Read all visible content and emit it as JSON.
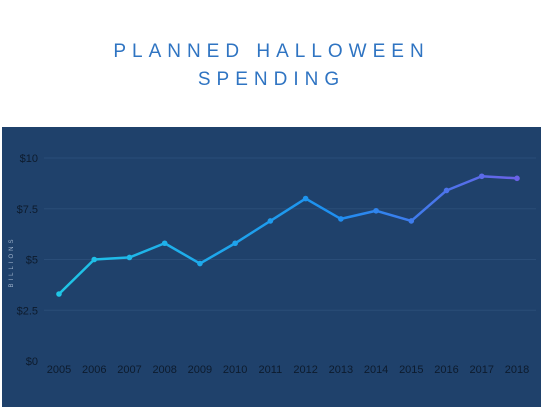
{
  "title_line1": "PLANNED HALLOWEEN",
  "title_line2": "SPENDING",
  "colors": {
    "background": "#ffffff",
    "panel": "#1f416b",
    "grid": "#2a4d78",
    "title": "#2f74c2",
    "line_start": "#1fc6e6",
    "line_mid": "#1e8ff0",
    "line_end": "#6a62e8",
    "tick_text": "#0d1b2d"
  },
  "chart_data": {
    "type": "line",
    "title": "PLANNED HALLOWEEN SPENDING",
    "xlabel": "",
    "ylabel": "BILLIONS",
    "categories": [
      "2005",
      "2006",
      "2007",
      "2008",
      "2009",
      "2010",
      "2011",
      "2012",
      "2013",
      "2014",
      "2015",
      "2016",
      "2017",
      "2018"
    ],
    "values": [
      3.3,
      5.0,
      5.1,
      5.8,
      4.8,
      5.8,
      6.9,
      8.0,
      7.0,
      7.4,
      6.9,
      8.4,
      9.1,
      9.0
    ],
    "ylim": [
      0,
      10
    ],
    "yticks": [
      0,
      2.5,
      5,
      7.5,
      10
    ],
    "ytick_labels": [
      "$0",
      "$2.5",
      "$5",
      "$7.5",
      "$10"
    ],
    "grid": true,
    "legend": "none"
  }
}
